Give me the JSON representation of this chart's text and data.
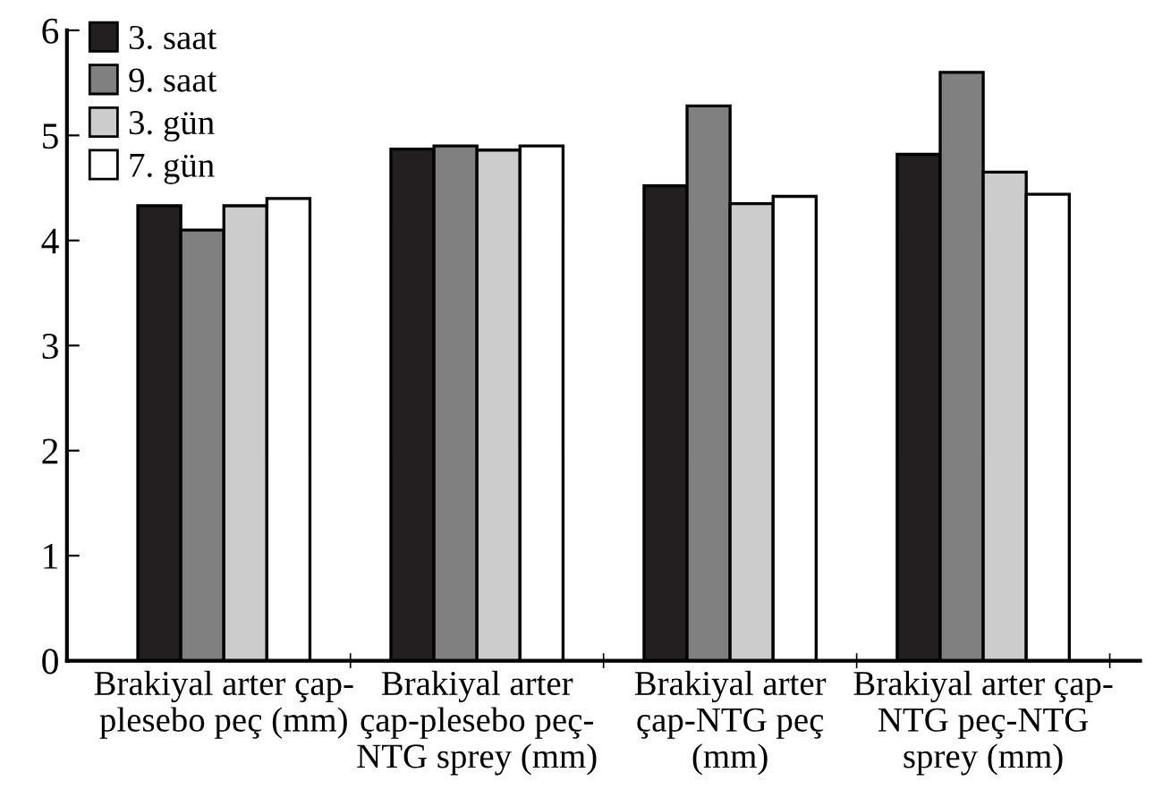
{
  "chart_data": {
    "type": "bar",
    "categories": [
      "Brakiyal arter çap-\nplesebo peç (mm)",
      "Brakiyal arter\nçap-plesebo peç-\nNTG sprey (mm)",
      "Brakiyal arter\nçap-NTG peç\n(mm)",
      "Brakiyal arter çap-\nNTG peç-NTG\nsprey (mm)"
    ],
    "series": [
      {
        "name": "3. saat",
        "color": "#231f20",
        "values": [
          4.33,
          4.87,
          4.52,
          4.82
        ]
      },
      {
        "name": "9. saat",
        "color": "#808080",
        "values": [
          4.1,
          4.9,
          5.28,
          5.6
        ]
      },
      {
        "name": "3. gün",
        "color": "#cccccc",
        "values": [
          4.33,
          4.86,
          4.35,
          4.65
        ]
      },
      {
        "name": "7. gün",
        "color": "#ffffff",
        "values": [
          4.4,
          4.9,
          4.42,
          4.44
        ]
      }
    ],
    "ylim": [
      0,
      6
    ],
    "yticks": [
      0,
      1,
      2,
      3,
      4,
      5,
      6
    ],
    "grid": false,
    "legend": "top left"
  }
}
